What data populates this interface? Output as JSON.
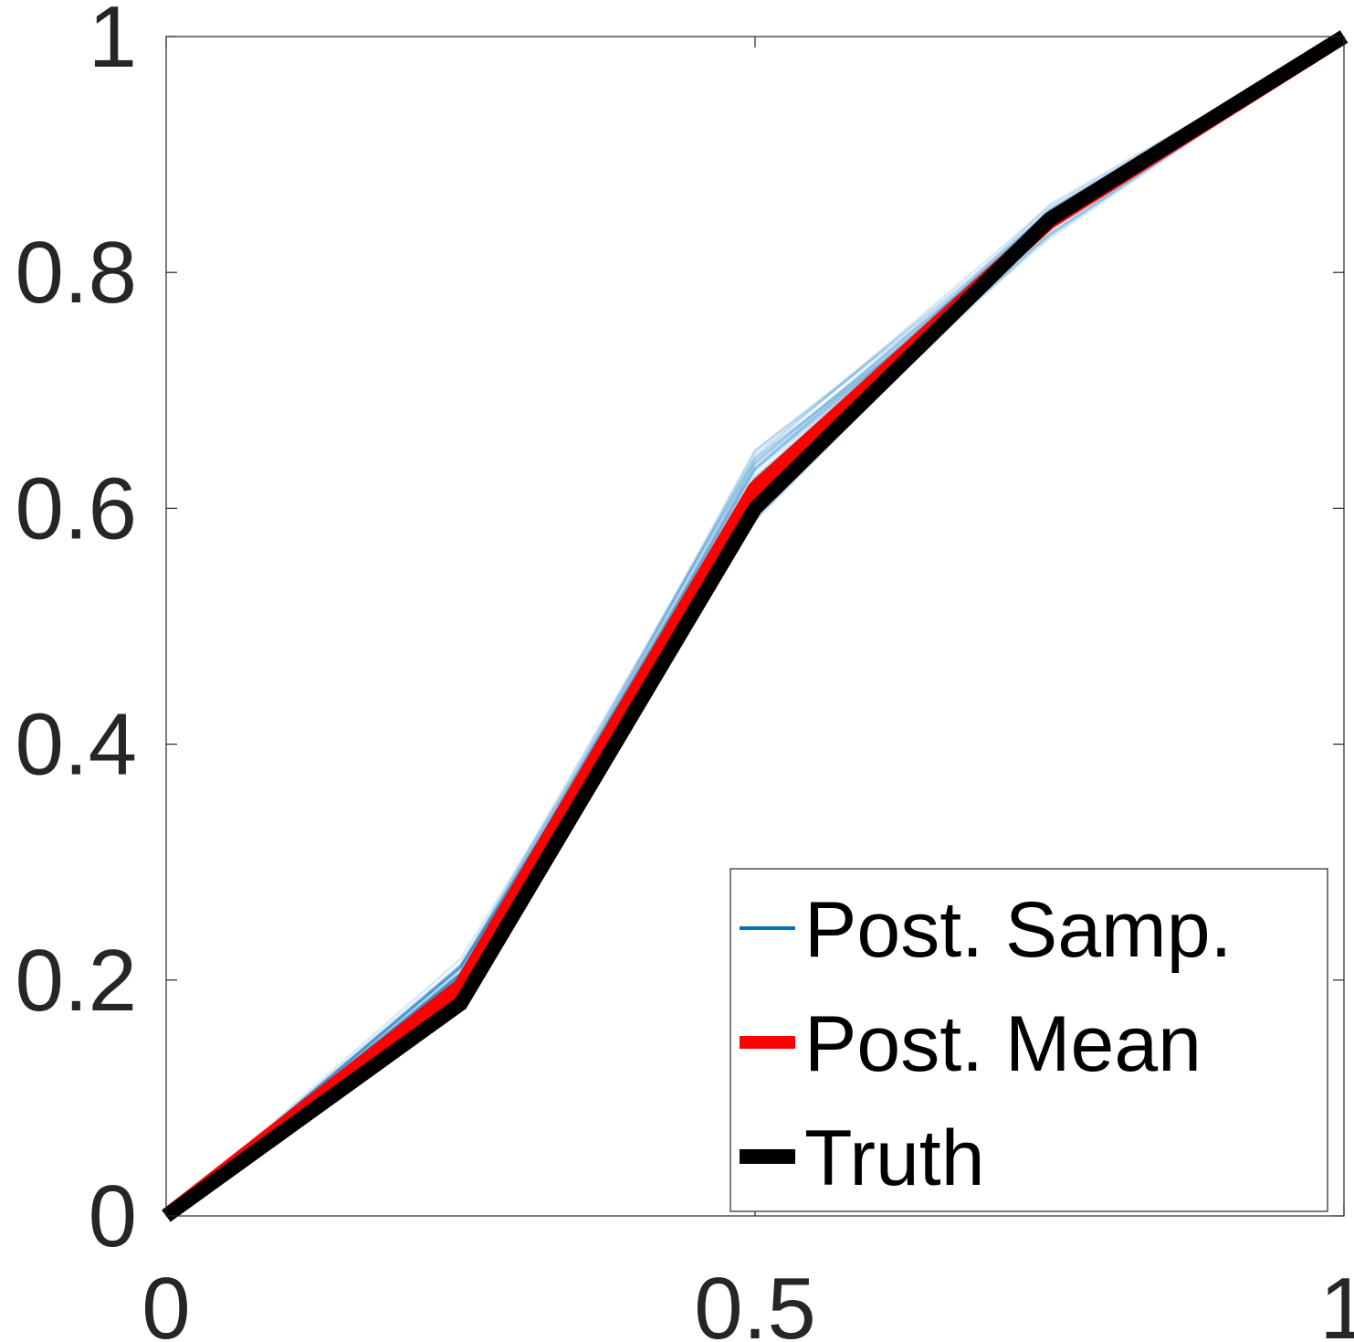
{
  "chart_data": {
    "type": "line",
    "xlim": [
      0,
      1
    ],
    "ylim": [
      0,
      1
    ],
    "xticks": [
      0,
      0.5,
      1
    ],
    "xtick_labels": [
      "0",
      "0.5",
      "1"
    ],
    "yticks": [
      0,
      0.2,
      0.4,
      0.6,
      0.8,
      1
    ],
    "ytick_labels": [
      "0",
      "0.2",
      "0.4",
      "0.6",
      "0.8",
      "1"
    ],
    "grid": false,
    "legend_position": "bottom-right",
    "x": [
      0,
      0.25,
      0.5,
      0.75,
      1
    ],
    "series": [
      {
        "name": "Post. Samp.",
        "color": "#0072BD",
        "kind": "samples",
        "y_center": [
          0,
          0.2,
          0.62,
          0.845,
          1
        ],
        "y_spread": [
          0,
          0.02,
          0.04,
          0.02,
          0
        ]
      },
      {
        "name": "Post. Mean",
        "color": "#FF0000",
        "kind": "line",
        "y": [
          0,
          0.195,
          0.617,
          0.843,
          1
        ]
      },
      {
        "name": "Truth",
        "color": "#000000",
        "kind": "line",
        "y": [
          0,
          0.18,
          0.6,
          0.845,
          1
        ]
      }
    ]
  }
}
